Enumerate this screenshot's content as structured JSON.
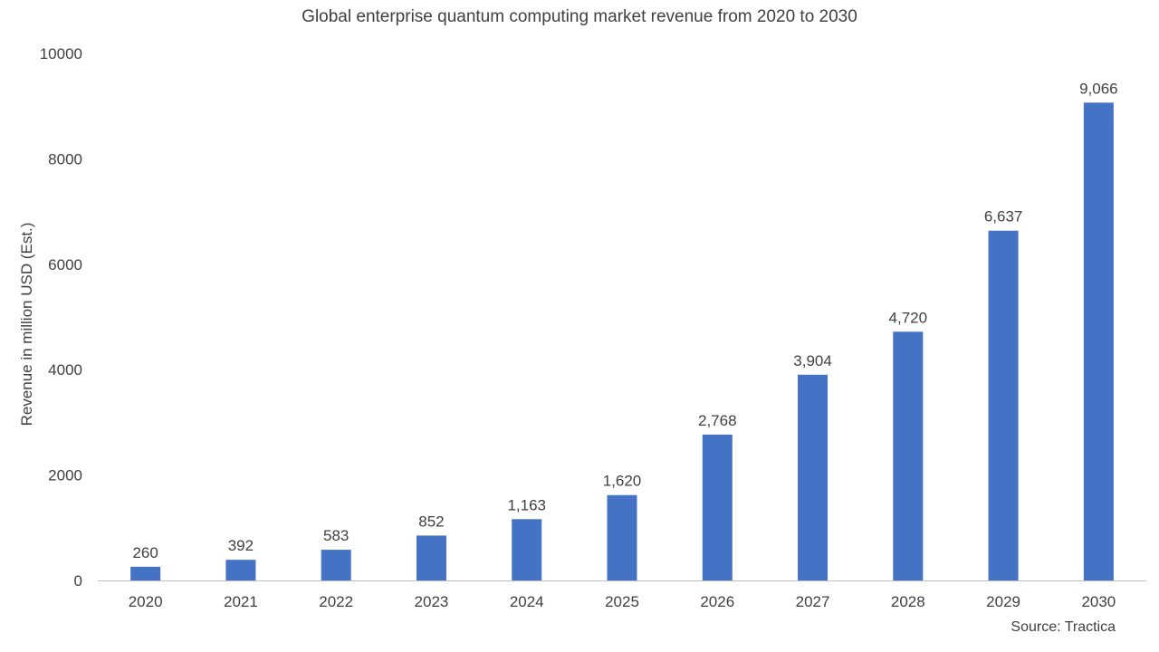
{
  "chart_data": {
    "type": "bar",
    "title": "Global enterprise quantum computing market revenue from 2020 to 2030",
    "xlabel": "",
    "ylabel": "Revenue in million USD (Est.)",
    "categories": [
      "2020",
      "2021",
      "2022",
      "2023",
      "2024",
      "2025",
      "2026",
      "2027",
      "2028",
      "2029",
      "2030"
    ],
    "values": [
      260,
      392,
      583,
      852,
      1163,
      1620,
      2768,
      3904,
      4720,
      6637,
      9066
    ],
    "value_labels": [
      "260",
      "392",
      "583",
      "852",
      "1,163",
      "1,620",
      "2,768",
      "3,904",
      "4,720",
      "6,637",
      "9,066"
    ],
    "ylim": [
      0,
      10000
    ],
    "yticks": [
      0,
      2000,
      4000,
      6000,
      8000,
      10000
    ],
    "ytick_labels": [
      "0",
      "2000",
      "4000",
      "6000",
      "8000",
      "10000"
    ],
    "grid": false,
    "bar_color": "#4472C4",
    "axis_color": "#BFBFBF",
    "source": "Source: Tractica"
  }
}
